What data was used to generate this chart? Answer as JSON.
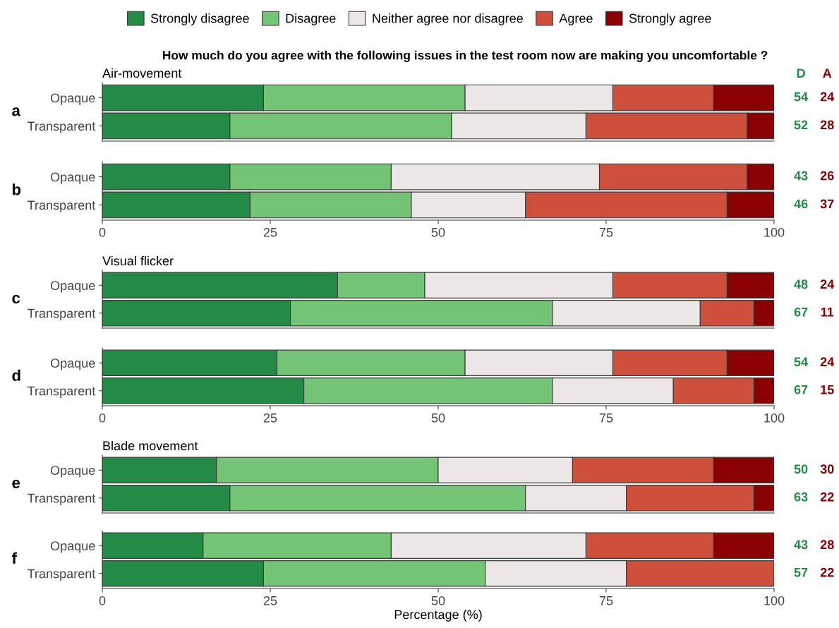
{
  "chart_data": [
    {
      "type": "bar",
      "orientation": "horizontal",
      "stacked": true,
      "title": "How much do you agree with the following issues in the test room now are making you uncomfortable ?",
      "subtitle": "Air-movement",
      "categories": [
        "Opaque",
        "Transparent"
      ],
      "xlim": [
        0,
        100
      ],
      "xticks": [
        0,
        25,
        50,
        75,
        100
      ],
      "tick_labels": "y",
      "legend": "top",
      "annotations": [
        "a",
        "D",
        "A",
        "54",
        "24",
        "52",
        "28"
      ],
      "series": [
        {
          "name": "Strongly disagree",
          "color": "#238b45",
          "values": [
            24,
            19
          ]
        },
        {
          "name": "Disagree",
          "color": "#74c476",
          "values": [
            30,
            33
          ]
        },
        {
          "name": "Neither agree nor disagree",
          "color": "#ede6e6",
          "values": [
            22,
            20
          ]
        },
        {
          "name": "Agree",
          "color": "#cd4f3c",
          "values": [
            15,
            24
          ]
        },
        {
          "name": "Strongly agree",
          "color": "#8b0000",
          "values": [
            9,
            4
          ]
        }
      ]
    },
    {
      "type": "bar",
      "orientation": "horizontal",
      "stacked": true,
      "categories": [
        "Opaque",
        "Transparent"
      ],
      "xlim": [
        0,
        100
      ],
      "xticks": [
        0,
        25,
        50,
        75,
        100
      ],
      "annotations": [
        "b",
        "43",
        "26",
        "46",
        "37"
      ],
      "series": [
        {
          "color": "#238b45",
          "values": [
            19,
            22
          ]
        },
        {
          "color": "#74c476",
          "values": [
            24,
            24
          ]
        },
        {
          "color": "#ede6e6",
          "values": [
            31,
            17
          ]
        },
        {
          "color": "#cd4f3c",
          "values": [
            22,
            30
          ]
        },
        {
          "color": "#8b0000",
          "values": [
            4,
            7
          ]
        }
      ]
    },
    {
      "type": "bar",
      "orientation": "horizontal",
      "stacked": true,
      "title": "Visual flicker",
      "categories": [
        "Opaque",
        "Transparent"
      ],
      "xlim": [
        0,
        100
      ],
      "xticks": [
        0,
        25,
        50,
        75,
        100
      ],
      "tick_labels": "y",
      "annotations": [
        "c",
        "48",
        "24",
        "67",
        "11"
      ],
      "series": [
        {
          "color": "#238b45",
          "values": [
            35,
            28
          ]
        },
        {
          "color": "#74c476",
          "values": [
            13,
            39
          ]
        },
        {
          "color": "#ede6e6",
          "values": [
            28,
            22
          ]
        },
        {
          "color": "#cd4f3c",
          "values": [
            17,
            8
          ]
        },
        {
          "color": "#8b0000",
          "values": [
            7,
            3
          ]
        }
      ]
    },
    {
      "type": "bar",
      "orientation": "horizontal",
      "stacked": true,
      "categories": [
        "Opaque",
        "Transparent"
      ],
      "xlim": [
        0,
        100
      ],
      "xticks": [
        0,
        25,
        50,
        75,
        100
      ],
      "annotations": [
        "d",
        "54",
        "24",
        "67",
        "15"
      ],
      "series": [
        {
          "color": "#238b45",
          "values": [
            26,
            30
          ]
        },
        {
          "color": "#74c476",
          "values": [
            28,
            37
          ]
        },
        {
          "color": "#ede6e6",
          "values": [
            22,
            18
          ]
        },
        {
          "color": "#cd4f3c",
          "values": [
            17,
            12
          ]
        },
        {
          "color": "#8b0000",
          "values": [
            7,
            3
          ]
        }
      ]
    },
    {
      "type": "bar",
      "orientation": "horizontal",
      "stacked": true,
      "title": "Blade movement",
      "categories": [
        "Opaque",
        "Transparent"
      ],
      "xlim": [
        0,
        100
      ],
      "xticks": [
        0,
        25,
        50,
        75,
        100
      ],
      "tick_labels": "y",
      "annotations": [
        "e",
        "50",
        "30",
        "63",
        "22"
      ],
      "series": [
        {
          "color": "#238b45",
          "values": [
            17,
            19
          ]
        },
        {
          "color": "#74c476",
          "values": [
            33,
            44
          ]
        },
        {
          "color": "#ede6e6",
          "values": [
            20,
            15
          ]
        },
        {
          "color": "#cd4f3c",
          "values": [
            21,
            19
          ]
        },
        {
          "color": "#8b0000",
          "values": [
            9,
            3
          ]
        }
      ]
    },
    {
      "type": "bar",
      "orientation": "horizontal",
      "stacked": true,
      "xlabel": "Percentage (%)",
      "categories": [
        "Opaque",
        "Transparent"
      ],
      "xlim": [
        0,
        100
      ],
      "xticks": [
        0,
        25,
        50,
        75,
        100
      ],
      "annotations": [
        "f",
        "43",
        "28",
        "57",
        "22"
      ],
      "series": [
        {
          "color": "#238b45",
          "values": [
            15,
            24
          ]
        },
        {
          "color": "#74c476",
          "values": [
            28,
            33
          ]
        },
        {
          "color": "#ede6e6",
          "values": [
            29,
            21
          ]
        },
        {
          "color": "#cd4f3c",
          "values": [
            19,
            22
          ]
        },
        {
          "color": "#8b0000",
          "values": [
            9,
            0
          ]
        }
      ]
    }
  ]
}
